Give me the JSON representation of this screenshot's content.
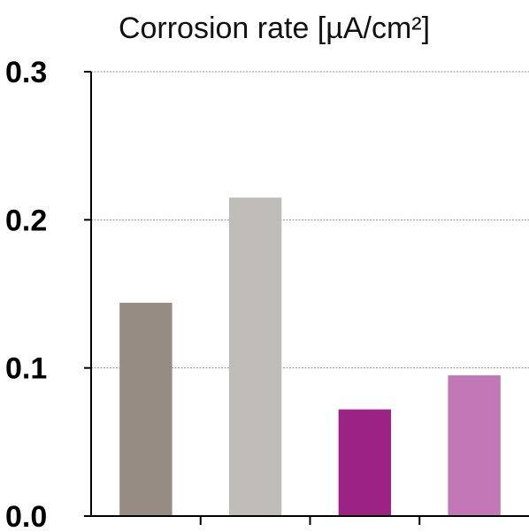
{
  "chart_data": {
    "type": "bar",
    "title": "Corrosion rate [µA/cm²]",
    "xlabel": "",
    "ylabel": "",
    "ylim": [
      0,
      0.3
    ],
    "yticks": [
      "0.0",
      "0.1",
      "0.2",
      "0.3"
    ],
    "grid": true,
    "legend": "none",
    "categories": [
      "",
      "",
      "",
      ""
    ],
    "values": [
      0.144,
      0.215,
      0.072,
      0.095
    ],
    "colors": [
      "#968c84",
      "#c0bcb8",
      "#9c2386",
      "#c278b6"
    ]
  }
}
